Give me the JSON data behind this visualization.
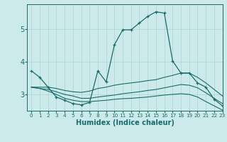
{
  "xlabel": "Humidex (Indice chaleur)",
  "background_color": "#cceaea",
  "grid_color": "#aad4d4",
  "line_color": "#1a6b6b",
  "xlim": [
    -0.5,
    23
  ],
  "ylim": [
    2.5,
    5.75
  ],
  "yticks": [
    3,
    4,
    5
  ],
  "xticks": [
    0,
    1,
    2,
    3,
    4,
    5,
    6,
    7,
    8,
    9,
    10,
    11,
    12,
    13,
    14,
    15,
    16,
    17,
    18,
    19,
    20,
    21,
    22,
    23
  ],
  "line1_x": [
    0,
    1,
    2,
    3,
    4,
    5,
    6,
    7,
    8,
    9,
    10,
    11,
    12,
    13,
    14,
    15,
    16,
    17,
    18,
    19,
    20,
    21,
    22,
    23
  ],
  "line1_y": [
    3.72,
    3.52,
    3.22,
    2.92,
    2.82,
    2.72,
    2.68,
    2.75,
    3.72,
    3.38,
    4.52,
    4.97,
    4.97,
    5.18,
    5.38,
    5.52,
    5.48,
    4.02,
    3.65,
    3.65,
    3.35,
    3.22,
    2.85,
    2.65
  ],
  "line2_x": [
    0,
    1,
    2,
    3,
    4,
    5,
    6,
    7,
    8,
    9,
    10,
    11,
    12,
    13,
    14,
    15,
    16,
    17,
    18,
    19,
    20,
    21,
    22,
    23
  ],
  "line2_y": [
    3.22,
    3.22,
    3.22,
    3.18,
    3.12,
    3.08,
    3.06,
    3.1,
    3.18,
    3.22,
    3.28,
    3.32,
    3.35,
    3.38,
    3.42,
    3.45,
    3.52,
    3.58,
    3.65,
    3.65,
    3.52,
    3.35,
    3.15,
    2.95
  ],
  "line3_x": [
    0,
    1,
    2,
    3,
    4,
    5,
    6,
    7,
    8,
    9,
    10,
    11,
    12,
    13,
    14,
    15,
    16,
    17,
    18,
    19,
    20,
    21,
    22,
    23
  ],
  "line3_y": [
    3.22,
    3.18,
    3.15,
    3.08,
    3.0,
    2.95,
    2.88,
    2.88,
    2.92,
    2.95,
    2.98,
    3.02,
    3.05,
    3.08,
    3.12,
    3.15,
    3.2,
    3.25,
    3.3,
    3.28,
    3.2,
    3.05,
    2.88,
    2.72
  ],
  "line4_x": [
    0,
    1,
    2,
    3,
    4,
    5,
    6,
    7,
    8,
    9,
    10,
    11,
    12,
    13,
    14,
    15,
    16,
    17,
    18,
    19,
    20,
    21,
    22,
    23
  ],
  "line4_y": [
    3.22,
    3.18,
    3.1,
    3.0,
    2.88,
    2.82,
    2.78,
    2.78,
    2.8,
    2.82,
    2.85,
    2.87,
    2.88,
    2.9,
    2.92,
    2.95,
    2.98,
    3.0,
    3.02,
    3.0,
    2.92,
    2.78,
    2.65,
    2.52
  ]
}
